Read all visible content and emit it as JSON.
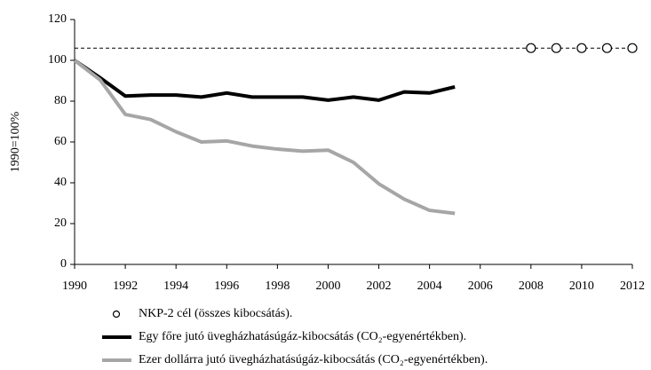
{
  "chart_data": {
    "type": "line",
    "ylabel": "1990=100%",
    "xlim": [
      1990,
      2012
    ],
    "xticks": [
      1990,
      1992,
      1994,
      1996,
      1998,
      2000,
      2002,
      2004,
      2006,
      2008,
      2010,
      2012
    ],
    "ylim": [
      0,
      120
    ],
    "yticks": [
      0,
      20,
      40,
      60,
      80,
      100,
      120
    ],
    "grid": false,
    "legend": "bottom",
    "reference_line": {
      "value": 106,
      "color": "#000000",
      "style": "dashed"
    },
    "series": [
      {
        "name": "NKP-2 cél (összes kibocsátás).",
        "color": "#000000",
        "marker": "circle",
        "line": false,
        "x": [
          2008,
          2009,
          2010,
          2011,
          2012
        ],
        "values": [
          106,
          106,
          106,
          106,
          106
        ]
      },
      {
        "name": "Egy főre jutó üvegházhatásúgáz-kibocsátás (CO₂-egyenértékben).",
        "color": "#000000",
        "marker": "none",
        "line": true,
        "x": [
          1990,
          1991,
          1992,
          1993,
          1994,
          1995,
          1996,
          1997,
          1998,
          1999,
          2000,
          2001,
          2002,
          2003,
          2004,
          2005
        ],
        "values": [
          100,
          91.5,
          82.5,
          83,
          83,
          82,
          84,
          82,
          82,
          82,
          80.5,
          82,
          80.5,
          84.5,
          84,
          87
        ]
      },
      {
        "name": "Ezer dollárra jutó üvegházhatásúgáz-kibocsátás (CO₂-egyenértékben).",
        "color": "#a6a6a6",
        "marker": "none",
        "line": true,
        "x": [
          1990,
          1991,
          1992,
          1993,
          1994,
          1995,
          1996,
          1997,
          1998,
          1999,
          2000,
          2001,
          2002,
          2003,
          2004,
          2005
        ],
        "values": [
          100,
          90.5,
          73.5,
          71,
          65,
          60,
          60.5,
          58,
          56.5,
          55.5,
          56,
          50,
          39.5,
          32,
          26.5,
          25
        ]
      }
    ]
  }
}
